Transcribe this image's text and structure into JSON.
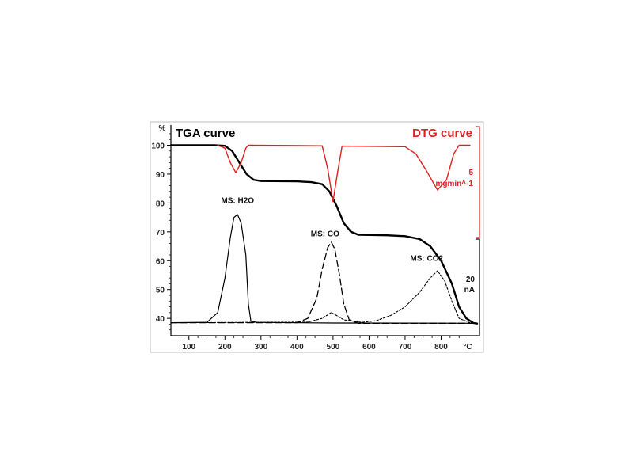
{
  "chart_data": {
    "type": "line",
    "title_left": "TGA curve",
    "title_right": "DTG curve",
    "x_unit": "°C",
    "y_unit": "%",
    "xlim": [
      50,
      900
    ],
    "ylim": [
      34,
      107
    ],
    "x_ticks": [
      100,
      200,
      300,
      400,
      500,
      600,
      700,
      800
    ],
    "y_ticks": [
      40,
      50,
      60,
      70,
      80,
      90,
      100
    ],
    "dtg_scale": {
      "value": "5",
      "unit": "mgmin^-1"
    },
    "ms_scale": {
      "value": "20",
      "unit": "nA"
    },
    "colors": {
      "tga": "#000000",
      "dtg": "#e02020",
      "ms": "#000000"
    },
    "series": [
      {
        "name": "TGA curve",
        "style": "bold-solid",
        "points": [
          [
            50,
            100
          ],
          [
            170,
            100
          ],
          [
            200,
            99.8
          ],
          [
            220,
            98
          ],
          [
            240,
            94
          ],
          [
            260,
            90
          ],
          [
            280,
            88
          ],
          [
            300,
            87.6
          ],
          [
            400,
            87.5
          ],
          [
            440,
            87.2
          ],
          [
            470,
            86.5
          ],
          [
            490,
            84
          ],
          [
            510,
            79
          ],
          [
            530,
            73
          ],
          [
            550,
            70
          ],
          [
            570,
            69
          ],
          [
            650,
            68.8
          ],
          [
            700,
            68.5
          ],
          [
            740,
            67.5
          ],
          [
            770,
            65
          ],
          [
            800,
            60
          ],
          [
            830,
            52
          ],
          [
            850,
            44
          ],
          [
            870,
            40
          ],
          [
            890,
            38.4
          ],
          [
            900,
            38.2
          ]
        ]
      },
      {
        "name": "DTG curve",
        "style": "red-solid",
        "points": [
          [
            180,
            100
          ],
          [
            200,
            99
          ],
          [
            215,
            94
          ],
          [
            230,
            90.5
          ],
          [
            245,
            94
          ],
          [
            258,
            99
          ],
          [
            265,
            100
          ],
          [
            470,
            99.8
          ],
          [
            485,
            92
          ],
          [
            500,
            80.5
          ],
          [
            512,
            90
          ],
          [
            525,
            99.7
          ],
          [
            700,
            99.5
          ],
          [
            730,
            97
          ],
          [
            760,
            91
          ],
          [
            790,
            84.5
          ],
          [
            815,
            88
          ],
          [
            835,
            97
          ],
          [
            850,
            100
          ],
          [
            880,
            100
          ]
        ]
      },
      {
        "name": "MS: H2O",
        "style": "solid",
        "points": [
          [
            50,
            38.5
          ],
          [
            150,
            38.6
          ],
          [
            180,
            42
          ],
          [
            200,
            54
          ],
          [
            215,
            68
          ],
          [
            225,
            75
          ],
          [
            235,
            76
          ],
          [
            245,
            73
          ],
          [
            258,
            62
          ],
          [
            265,
            45
          ],
          [
            272,
            39
          ],
          [
            290,
            38.6
          ],
          [
            500,
            38.4
          ],
          [
            900,
            38.3
          ]
        ]
      },
      {
        "name": "MS: CO",
        "style": "dashed",
        "points": [
          [
            50,
            38.5
          ],
          [
            400,
            38.5
          ],
          [
            430,
            40
          ],
          [
            455,
            47
          ],
          [
            470,
            57
          ],
          [
            485,
            64.5
          ],
          [
            495,
            66.5
          ],
          [
            505,
            64
          ],
          [
            518,
            55
          ],
          [
            530,
            45
          ],
          [
            545,
            39.5
          ],
          [
            570,
            38.3
          ],
          [
            900,
            38.3
          ]
        ]
      },
      {
        "name": "MS: CO2",
        "style": "dotted",
        "points": [
          [
            50,
            38.5
          ],
          [
            430,
            38.7
          ],
          [
            470,
            40
          ],
          [
            495,
            42
          ],
          [
            510,
            41
          ],
          [
            530,
            39.5
          ],
          [
            580,
            38.6
          ],
          [
            620,
            39.2
          ],
          [
            660,
            41
          ],
          [
            700,
            44
          ],
          [
            740,
            49
          ],
          [
            770,
            54
          ],
          [
            790,
            56.5
          ],
          [
            810,
            53
          ],
          [
            830,
            46
          ],
          [
            850,
            40
          ],
          [
            880,
            38.5
          ],
          [
            900,
            38.4
          ]
        ]
      }
    ],
    "annotations": [
      {
        "text": "MS: H2O",
        "x": 235,
        "y": 80
      },
      {
        "text": "MS: CO",
        "x": 478,
        "y": 68.5
      },
      {
        "text": "MS: CO2",
        "x": 760,
        "y": 60
      }
    ]
  }
}
